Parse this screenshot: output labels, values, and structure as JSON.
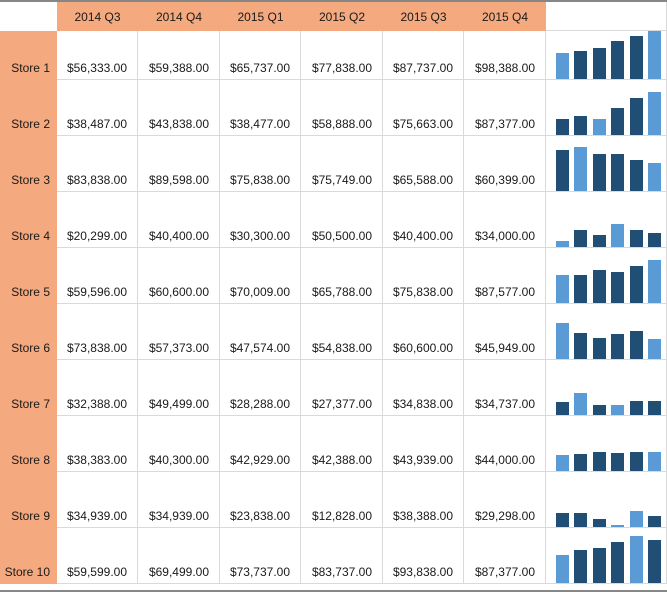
{
  "header": {
    "corner": "",
    "columns": [
      "2014 Q3",
      "2014 Q4",
      "2015 Q1",
      "2015 Q2",
      "2015 Q3",
      "2015 Q4"
    ]
  },
  "rows": [
    {
      "label": "Store 1",
      "values": [
        "$56,333.00",
        "$59,388.00",
        "$65,737.00",
        "$77,838.00",
        "$87,737.00",
        "$98,388.00"
      ],
      "numeric": [
        56333,
        59388,
        65737,
        77838,
        87737,
        98388
      ],
      "spark_low": 0,
      "spark_high": 5
    },
    {
      "label": "Store 2",
      "values": [
        "$38,487.00",
        "$43,838.00",
        "$38,477.00",
        "$58,888.00",
        "$75,663.00",
        "$87,377.00"
      ],
      "numeric": [
        38487,
        43838,
        38477,
        58888,
        75663,
        87377
      ],
      "spark_low": 2,
      "spark_high": 5
    },
    {
      "label": "Store 3",
      "values": [
        "$83,838.00",
        "$89,598.00",
        "$75,838.00",
        "$75,749.00",
        "$65,588.00",
        "$60,399.00"
      ],
      "numeric": [
        83838,
        89598,
        75838,
        75749,
        65588,
        60399
      ],
      "spark_low": 5,
      "spark_high": 1
    },
    {
      "label": "Store 4",
      "values": [
        "$20,299.00",
        "$40,400.00",
        "$30,300.00",
        "$50,500.00",
        "$40,400.00",
        "$34,000.00"
      ],
      "numeric": [
        20299,
        40400,
        30300,
        50500,
        40400,
        34000
      ],
      "spark_low": 0,
      "spark_high": 3
    },
    {
      "label": "Store 5",
      "values": [
        "$59,596.00",
        "$60,600.00",
        "$70,009.00",
        "$65,788.00",
        "$75,838.00",
        "$87,577.00"
      ],
      "numeric": [
        59596,
        60600,
        70009,
        65788,
        75838,
        87577
      ],
      "spark_low": 0,
      "spark_high": 5
    },
    {
      "label": "Store 6",
      "values": [
        "$73,838.00",
        "$57,373.00",
        "$47,574.00",
        "$54,838.00",
        "$60,600.00",
        "$45,949.00"
      ],
      "numeric": [
        73838,
        57373,
        47574,
        54838,
        60600,
        45949
      ],
      "spark_low": 5,
      "spark_high": 0
    },
    {
      "label": "Store 7",
      "values": [
        "$32,388.00",
        "$49,499.00",
        "$28,288.00",
        "$27,377.00",
        "$34,838.00",
        "$34,737.00"
      ],
      "numeric": [
        32388,
        49499,
        28288,
        27377,
        34838,
        34737
      ],
      "spark_low": 3,
      "spark_high": 1
    },
    {
      "label": "Store 8",
      "values": [
        "$38,383.00",
        "$40,300.00",
        "$42,929.00",
        "$42,388.00",
        "$43,939.00",
        "$44,000.00"
      ],
      "numeric": [
        38383,
        40300,
        42929,
        42388,
        43939,
        44000
      ],
      "spark_low": 0,
      "spark_high": 5
    },
    {
      "label": "Store 9",
      "values": [
        "$34,939.00",
        "$34,939.00",
        "$23,838.00",
        "$12,828.00",
        "$38,388.00",
        "$29,298.00"
      ],
      "numeric": [
        34939,
        34939,
        23838,
        12828,
        38388,
        29298
      ],
      "spark_low": 3,
      "spark_high": 4
    },
    {
      "label": "Store 10",
      "values": [
        "$59,599.00",
        "$69,499.00",
        "$73,737.00",
        "$83,737.00",
        "$93,838.00",
        "$87,377.00"
      ],
      "numeric": [
        59599,
        69499,
        73737,
        83737,
        93838,
        87377
      ],
      "spark_low": 0,
      "spark_high": 4
    }
  ],
  "chart_data": {
    "type": "bar",
    "note": "column sparklines, one per store row, shared vertical axis across group",
    "categories": [
      "2014 Q3",
      "2014 Q4",
      "2015 Q1",
      "2015 Q2",
      "2015 Q3",
      "2015 Q4"
    ],
    "series": [
      {
        "name": "Store 1",
        "values": [
          56333,
          59388,
          65737,
          77838,
          87737,
          98388
        ]
      },
      {
        "name": "Store 2",
        "values": [
          38487,
          43838,
          38477,
          58888,
          75663,
          87377
        ]
      },
      {
        "name": "Store 3",
        "values": [
          83838,
          89598,
          75838,
          75749,
          65588,
          60399
        ]
      },
      {
        "name": "Store 4",
        "values": [
          20299,
          40400,
          30300,
          50500,
          40400,
          34000
        ]
      },
      {
        "name": "Store 5",
        "values": [
          59596,
          60600,
          70009,
          65788,
          75838,
          87577
        ]
      },
      {
        "name": "Store 6",
        "values": [
          73838,
          57373,
          47574,
          54838,
          60600,
          45949
        ]
      },
      {
        "name": "Store 7",
        "values": [
          32388,
          49499,
          28288,
          27377,
          34838,
          34737
        ]
      },
      {
        "name": "Store 8",
        "values": [
          38383,
          40300,
          42929,
          42388,
          43939,
          44000
        ]
      },
      {
        "name": "Store 9",
        "values": [
          34939,
          34939,
          23838,
          12828,
          38388,
          29298
        ]
      },
      {
        "name": "Store 10",
        "values": [
          59599,
          69499,
          73737,
          83737,
          93838,
          87377
        ]
      }
    ],
    "axis_min": 12828,
    "axis_max": 98388,
    "highlight": "high and low point of each row colored light blue"
  },
  "colors": {
    "header_fill": "#F4A97E",
    "grid": "#D9D9D9",
    "spark_dark": "#204E75",
    "spark_light": "#5B9BD5",
    "edge_strip": "#868686",
    "text": "#1A1A1A"
  }
}
